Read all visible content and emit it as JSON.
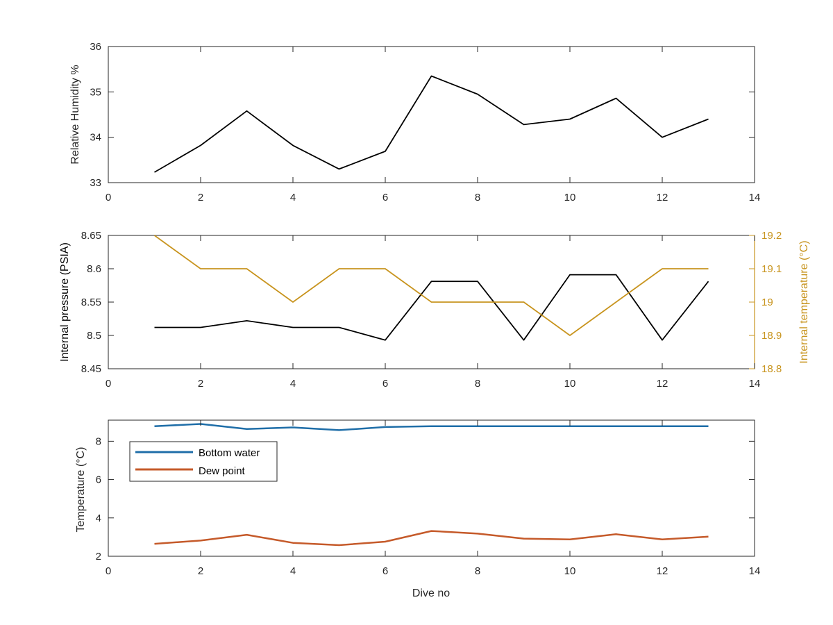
{
  "colors": {
    "humidity_line": "#000000",
    "pressure_line": "#000000",
    "temperature_right_axis": "#C8941E",
    "bottom_water": "#1F6EA8",
    "dew_point": "#C55A2A",
    "axes": "#262626"
  },
  "chart_data": [
    {
      "type": "line",
      "xlabel": "",
      "ylabel": "Relative Humidity %",
      "xlim": [
        0,
        14
      ],
      "ylim": [
        33,
        36
      ],
      "xticks": [
        "0",
        "2",
        "4",
        "6",
        "8",
        "10",
        "12",
        "14"
      ],
      "yticks": [
        "33",
        "34",
        "35",
        "36"
      ],
      "x": [
        1,
        2,
        3,
        4,
        5,
        6,
        7,
        8,
        9,
        10,
        11,
        12,
        13
      ],
      "series": [
        {
          "values": [
            33.23,
            33.82,
            34.58,
            33.82,
            33.3,
            33.69,
            35.35,
            34.95,
            34.28,
            34.4,
            34.86,
            34.0,
            34.4
          ]
        }
      ],
      "grid": false
    },
    {
      "type": "line",
      "xlabel": "",
      "ylabel": "Internal pressure (PSIA)",
      "ylabel_right": "Internal temperature (°C)",
      "xlim": [
        0,
        14
      ],
      "ylim": [
        8.45,
        8.65
      ],
      "ylim_right": [
        18.8,
        19.2
      ],
      "xticks": [
        "0",
        "2",
        "4",
        "6",
        "8",
        "10",
        "12",
        "14"
      ],
      "yticks": [
        "8.45",
        "8.5",
        "8.55",
        "8.6",
        "8.65"
      ],
      "yticks_right": [
        "18.8",
        "18.9",
        "19",
        "19.1",
        "19.2"
      ],
      "x": [
        1,
        2,
        3,
        4,
        5,
        6,
        7,
        8,
        9,
        10,
        11,
        12,
        13
      ],
      "series": [
        {
          "axis": "left",
          "values": [
            8.512,
            8.512,
            8.522,
            8.512,
            8.512,
            8.493,
            8.581,
            8.581,
            8.493,
            8.591,
            8.591,
            8.493,
            8.581
          ]
        },
        {
          "axis": "right",
          "values": [
            19.2,
            19.1,
            19.1,
            19.0,
            19.1,
            19.1,
            19.0,
            19.0,
            19.0,
            18.9,
            19.0,
            19.1,
            19.1
          ]
        }
      ],
      "grid": false
    },
    {
      "type": "line",
      "xlabel": "Dive no",
      "ylabel": "Temperature (°C)",
      "xlim": [
        0,
        14
      ],
      "ylim": [
        2,
        9.1
      ],
      "xticks": [
        "0",
        "2",
        "4",
        "6",
        "8",
        "10",
        "12",
        "14"
      ],
      "yticks": [
        "2",
        "4",
        "6",
        "8"
      ],
      "x": [
        1,
        2,
        3,
        4,
        5,
        6,
        7,
        8,
        9,
        10,
        11,
        12,
        13
      ],
      "series": [
        {
          "name": "Bottom water",
          "values": [
            8.78,
            8.9,
            8.64,
            8.72,
            8.58,
            8.74,
            8.78,
            8.78,
            8.78,
            8.78,
            8.78,
            8.78,
            8.78
          ]
        },
        {
          "name": "Dew point",
          "values": [
            2.65,
            2.82,
            3.12,
            2.7,
            2.58,
            2.76,
            3.32,
            3.18,
            2.92,
            2.88,
            3.15,
            2.88,
            3.02
          ]
        }
      ],
      "legend": "top-left",
      "grid": false
    }
  ]
}
